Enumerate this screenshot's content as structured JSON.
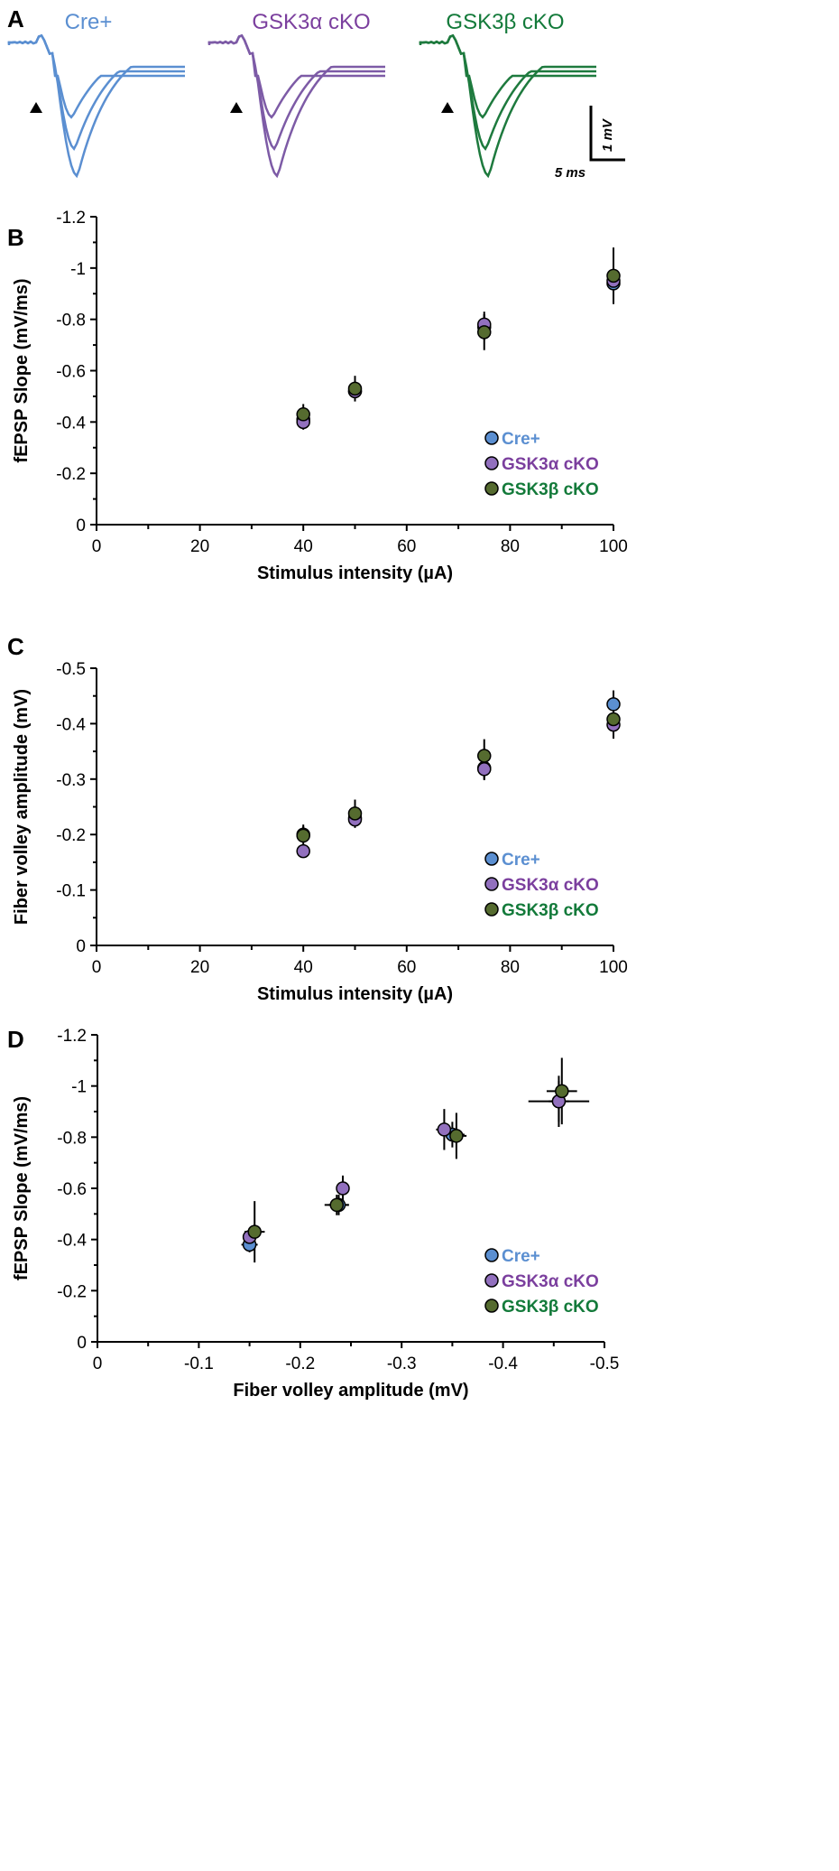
{
  "panels": {
    "a": "A",
    "b": "B",
    "c": "C",
    "d": "D"
  },
  "colors": {
    "cre": "#5b8fd1",
    "alpha": "#7d5ba6",
    "beta": "#1e7a3e",
    "cre_marker": "#5b8fd1",
    "alpha_marker": "#9270be",
    "beta_marker": "#556b2f",
    "alpha_text": "#7b3f9e",
    "beta_text": "#137a3a"
  },
  "traces": {
    "labels": [
      "Cre+",
      "GSK3α cKO",
      "GSK3β cKO"
    ],
    "scale_v": "1 mV",
    "scale_h": "5 ms"
  },
  "chart_data": [
    {
      "type": "scatter",
      "id": "b",
      "xlabel": "Stimulus intensity (µA)",
      "ylabel": "fEPSP Slope (mV/ms)",
      "xlim": [
        0,
        100
      ],
      "ylim": [
        0,
        -1.2
      ],
      "xticks": [
        "0",
        "20",
        "40",
        "60",
        "80",
        "100"
      ],
      "yticks": [
        "0",
        "-0.2",
        "-0.4",
        "-0.6",
        "-0.8",
        "-1",
        "-1.2"
      ],
      "x": [
        40,
        50,
        75,
        100
      ],
      "legend": "bottom-right",
      "series": [
        {
          "name": "Cre+",
          "values": [
            -0.41,
            -0.52,
            -0.77,
            -0.94
          ],
          "err": [
            0.03,
            0.03,
            0.05,
            0.08
          ]
        },
        {
          "name": "GSK3α cKO",
          "values": [
            -0.4,
            -0.52,
            -0.78,
            -0.95
          ],
          "err": [
            0.03,
            0.03,
            0.05,
            0.09
          ]
        },
        {
          "name": "GSK3β cKO",
          "values": [
            -0.43,
            -0.53,
            -0.75,
            -0.97
          ],
          "err": [
            0.04,
            0.05,
            0.07,
            0.11
          ]
        }
      ]
    },
    {
      "type": "scatter",
      "id": "c",
      "xlabel": "Stimulus intensity (µA)",
      "ylabel": "Fiber volley amplitude  (mV)",
      "xlim": [
        0,
        100
      ],
      "ylim": [
        0,
        -0.5
      ],
      "xticks": [
        "0",
        "20",
        "40",
        "60",
        "80",
        "100"
      ],
      "yticks": [
        "0",
        "-0.1",
        "-0.2",
        "-0.3",
        "-0.4",
        "-0.5"
      ],
      "x": [
        40,
        50,
        75,
        100
      ],
      "legend": "bottom-right",
      "series": [
        {
          "name": "Cre+",
          "values": [
            -0.2,
            -0.23,
            -0.32,
            -0.435
          ],
          "err": [
            0.015,
            0.015,
            0.02,
            0.025
          ]
        },
        {
          "name": "GSK3α cKO",
          "values": [
            -0.17,
            -0.227,
            -0.318,
            -0.398
          ],
          "err": [
            0.01,
            0.015,
            0.02,
            0.025
          ]
        },
        {
          "name": "GSK3β cKO",
          "values": [
            -0.198,
            -0.238,
            -0.342,
            -0.408
          ],
          "err": [
            0.02,
            0.025,
            0.03,
            0.035
          ]
        }
      ]
    },
    {
      "type": "scatter",
      "id": "d",
      "xlabel": "Fiber volley  amplitude (mV)",
      "ylabel": "fEPSP Slope (mV/ms)",
      "xlim": [
        0,
        -0.5
      ],
      "ylim": [
        0,
        -1.2
      ],
      "xticks": [
        "0",
        "-0.1",
        "-0.2",
        "-0.3",
        "-0.4",
        "-0.5"
      ],
      "yticks": [
        "0",
        "-0.2",
        "-0.4",
        "-0.6",
        "-0.8",
        "-1",
        "-1.2"
      ],
      "legend": "bottom-right",
      "series": [
        {
          "name": "Cre+",
          "x": [
            -0.15,
            -0.238,
            -0.35,
            -0.455
          ],
          "values": [
            -0.38,
            -0.535,
            -0.81,
            -0.94
          ],
          "xerr": [
            0.008,
            0.01,
            0.012,
            0.03
          ],
          "err": [
            0.03,
            0.04,
            0.05,
            0.08
          ]
        },
        {
          "name": "GSK3α cKO",
          "x": [
            -0.15,
            -0.242,
            -0.342,
            -0.455
          ],
          "values": [
            -0.41,
            -0.6,
            -0.83,
            -0.94
          ],
          "xerr": [
            0.005,
            0.005,
            0.008,
            0.01
          ],
          "err": [
            0.03,
            0.05,
            0.08,
            0.1
          ]
        },
        {
          "name": "GSK3β cKO",
          "x": [
            -0.155,
            -0.236,
            -0.354,
            -0.458
          ],
          "values": [
            -0.43,
            -0.535,
            -0.805,
            -0.98
          ],
          "xerr": [
            0.01,
            0.012,
            0.01,
            0.015
          ],
          "err": [
            0.12,
            0.04,
            0.09,
            0.13
          ]
        }
      ]
    }
  ]
}
